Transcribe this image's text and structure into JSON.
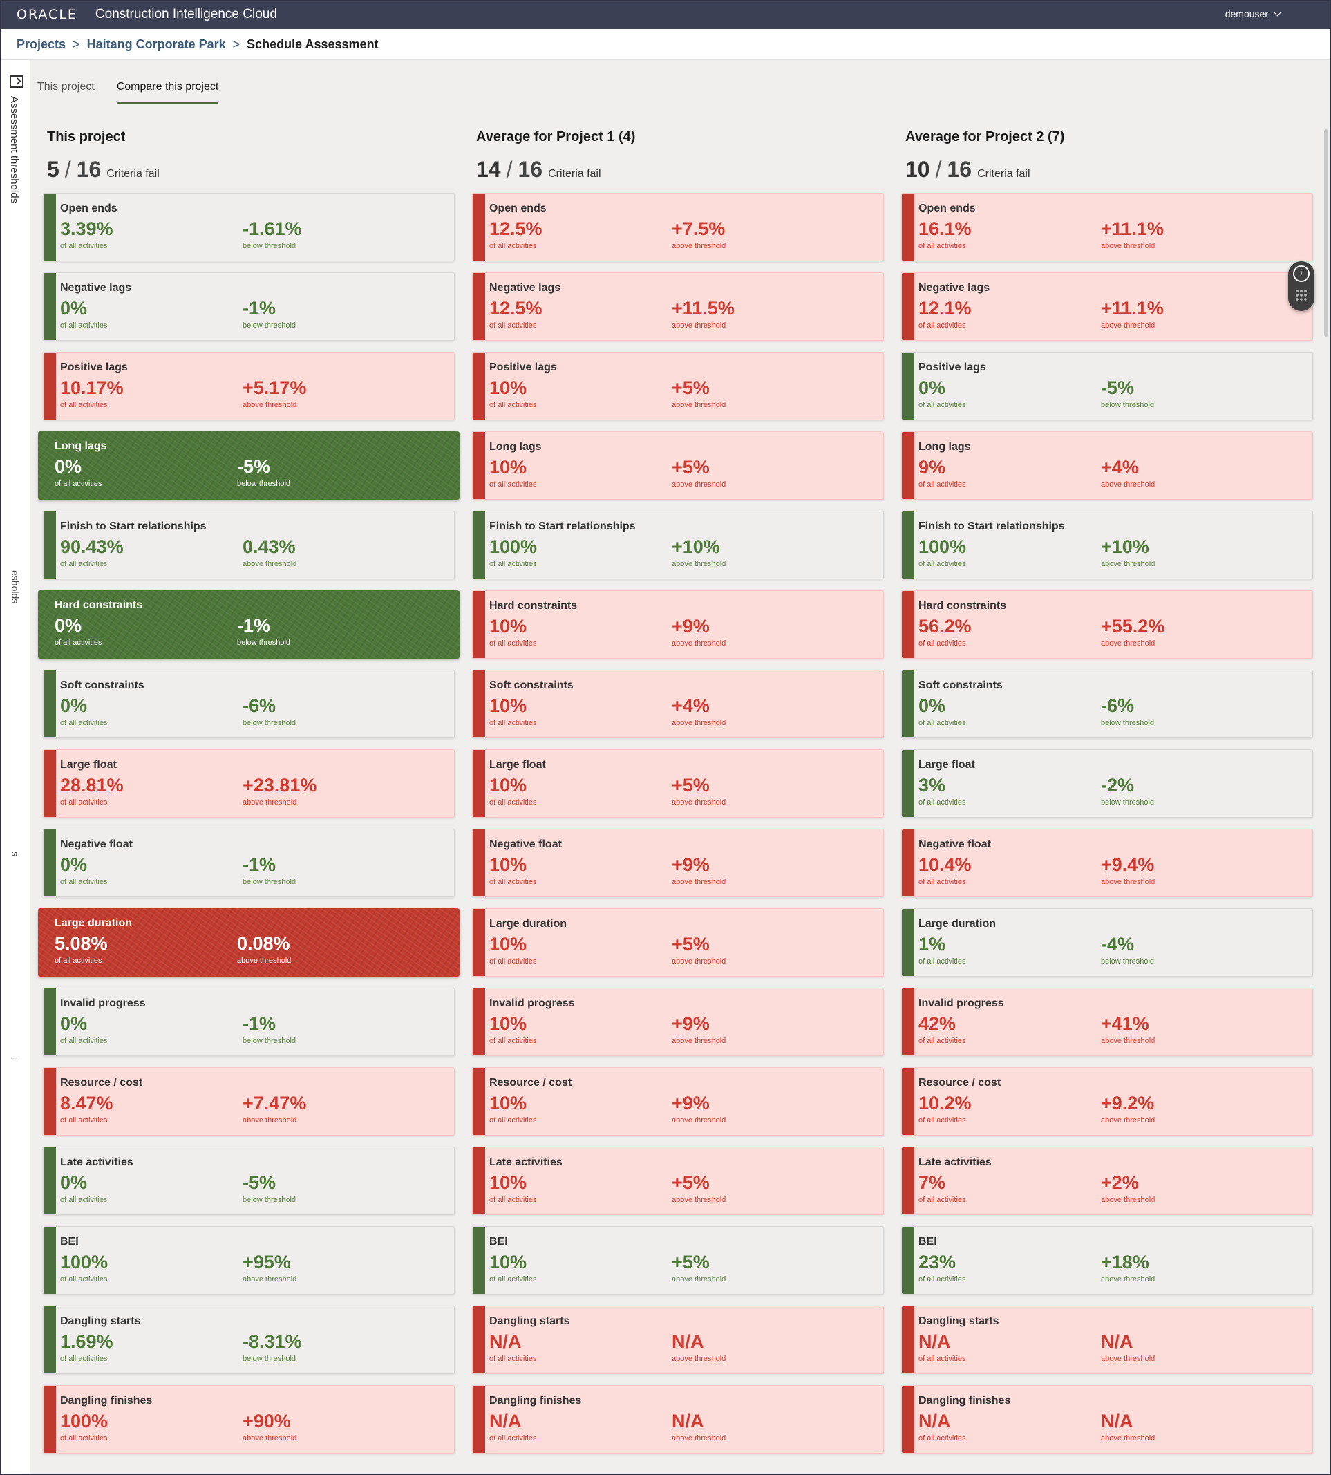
{
  "header": {
    "logo": "ORACLE",
    "app_title": "Construction Intelligence Cloud",
    "user": "demouser"
  },
  "breadcrumb": {
    "items": [
      "Projects",
      "Haitang Corporate Park",
      "Schedule Assessment"
    ],
    "separator": ">"
  },
  "rail": {
    "label": "Assessment thresholds",
    "frag1": "esholds",
    "frag2": "s",
    "frag3": "i"
  },
  "tabs": [
    "This project",
    "Compare this project"
  ],
  "columns": [
    {
      "title": "This project",
      "fail_count": "5",
      "total": "16",
      "label": "Criteria fail",
      "cards": [
        {
          "name": "Open ends",
          "value": "3.39%",
          "sub": "of all activities",
          "delta": "-1.61%",
          "delta_label": "below threshold",
          "status": "pass"
        },
        {
          "name": "Negative lags",
          "value": "0%",
          "sub": "of all activities",
          "delta": "-1%",
          "delta_label": "below threshold",
          "status": "pass"
        },
        {
          "name": "Positive lags",
          "value": "10.17%",
          "sub": "of all activities",
          "delta": "+5.17%",
          "delta_label": "above threshold",
          "status": "fail"
        },
        {
          "name": "Long lags",
          "value": "0%",
          "sub": "of all activities",
          "delta": "-5%",
          "delta_label": "below threshold",
          "status": "pass-selected"
        },
        {
          "name": "Finish to Start relationships",
          "value": "90.43%",
          "sub": "of all activities",
          "delta": "0.43%",
          "delta_label": "above threshold",
          "status": "pass"
        },
        {
          "name": "Hard constraints",
          "value": "0%",
          "sub": "of all activities",
          "delta": "-1%",
          "delta_label": "below threshold",
          "status": "pass-selected"
        },
        {
          "name": "Soft constraints",
          "value": "0%",
          "sub": "of all activities",
          "delta": "-6%",
          "delta_label": "below threshold",
          "status": "pass"
        },
        {
          "name": "Large float",
          "value": "28.81%",
          "sub": "of all activities",
          "delta": "+23.81%",
          "delta_label": "above threshold",
          "status": "fail"
        },
        {
          "name": "Negative float",
          "value": "0%",
          "sub": "of all activities",
          "delta": "-1%",
          "delta_label": "below threshold",
          "status": "pass"
        },
        {
          "name": "Large duration",
          "value": "5.08%",
          "sub": "of all activities",
          "delta": "0.08%",
          "delta_label": "above threshold",
          "status": "fail-selected"
        },
        {
          "name": "Invalid progress",
          "value": "0%",
          "sub": "of all activities",
          "delta": "-1%",
          "delta_label": "below threshold",
          "status": "pass"
        },
        {
          "name": "Resource / cost",
          "value": "8.47%",
          "sub": "of all activities",
          "delta": "+7.47%",
          "delta_label": "above threshold",
          "status": "fail"
        },
        {
          "name": "Late activities",
          "value": "0%",
          "sub": "of all activities",
          "delta": "-5%",
          "delta_label": "below threshold",
          "status": "pass"
        },
        {
          "name": "BEI",
          "value": "100%",
          "sub": "of all activities",
          "delta": "+95%",
          "delta_label": "above threshold",
          "status": "pass"
        },
        {
          "name": "Dangling starts",
          "value": "1.69%",
          "sub": "of all activities",
          "delta": "-8.31%",
          "delta_label": "below threshold",
          "status": "pass"
        },
        {
          "name": "Dangling finishes",
          "value": "100%",
          "sub": "of all activities",
          "delta": "+90%",
          "delta_label": "above threshold",
          "status": "fail"
        }
      ]
    },
    {
      "title": "Average for Project 1 (4)",
      "fail_count": "14",
      "total": "16",
      "label": "Criteria fail",
      "cards": [
        {
          "name": "Open ends",
          "value": "12.5%",
          "sub": "of all activities",
          "delta": "+7.5%",
          "delta_label": "above threshold",
          "status": "fail"
        },
        {
          "name": "Negative lags",
          "value": "12.5%",
          "sub": "of all activities",
          "delta": "+11.5%",
          "delta_label": "above threshold",
          "status": "fail"
        },
        {
          "name": "Positive lags",
          "value": "10%",
          "sub": "of all activities",
          "delta": "+5%",
          "delta_label": "above threshold",
          "status": "fail"
        },
        {
          "name": "Long lags",
          "value": "10%",
          "sub": "of all activities",
          "delta": "+5%",
          "delta_label": "above threshold",
          "status": "fail"
        },
        {
          "name": "Finish to Start relationships",
          "value": "100%",
          "sub": "of all activities",
          "delta": "+10%",
          "delta_label": "above threshold",
          "status": "pass"
        },
        {
          "name": "Hard constraints",
          "value": "10%",
          "sub": "of all activities",
          "delta": "+9%",
          "delta_label": "above threshold",
          "status": "fail"
        },
        {
          "name": "Soft constraints",
          "value": "10%",
          "sub": "of all activities",
          "delta": "+4%",
          "delta_label": "above threshold",
          "status": "fail"
        },
        {
          "name": "Large float",
          "value": "10%",
          "sub": "of all activities",
          "delta": "+5%",
          "delta_label": "above threshold",
          "status": "fail"
        },
        {
          "name": "Negative float",
          "value": "10%",
          "sub": "of all activities",
          "delta": "+9%",
          "delta_label": "above threshold",
          "status": "fail"
        },
        {
          "name": "Large duration",
          "value": "10%",
          "sub": "of all activities",
          "delta": "+5%",
          "delta_label": "above threshold",
          "status": "fail"
        },
        {
          "name": "Invalid progress",
          "value": "10%",
          "sub": "of all activities",
          "delta": "+9%",
          "delta_label": "above threshold",
          "status": "fail"
        },
        {
          "name": "Resource / cost",
          "value": "10%",
          "sub": "of all activities",
          "delta": "+9%",
          "delta_label": "above threshold",
          "status": "fail"
        },
        {
          "name": "Late activities",
          "value": "10%",
          "sub": "of all activities",
          "delta": "+5%",
          "delta_label": "above threshold",
          "status": "fail"
        },
        {
          "name": "BEI",
          "value": "10%",
          "sub": "of all activities",
          "delta": "+5%",
          "delta_label": "above threshold",
          "status": "pass"
        },
        {
          "name": "Dangling starts",
          "value": "N/A",
          "sub": "of all activities",
          "delta": "N/A",
          "delta_label": "above threshold",
          "status": "fail"
        },
        {
          "name": "Dangling finishes",
          "value": "N/A",
          "sub": "of all activities",
          "delta": "N/A",
          "delta_label": "above threshold",
          "status": "fail"
        }
      ]
    },
    {
      "title": "Average for Project 2 (7)",
      "fail_count": "10",
      "total": "16",
      "label": "Criteria fail",
      "cards": [
        {
          "name": "Open ends",
          "value": "16.1%",
          "sub": "of all activities",
          "delta": "+11.1%",
          "delta_label": "above threshold",
          "status": "fail"
        },
        {
          "name": "Negative lags",
          "value": "12.1%",
          "sub": "of all activities",
          "delta": "+11.1%",
          "delta_label": "above threshold",
          "status": "fail"
        },
        {
          "name": "Positive lags",
          "value": "0%",
          "sub": "of all activities",
          "delta": "-5%",
          "delta_label": "below threshold",
          "status": "pass"
        },
        {
          "name": "Long lags",
          "value": "9%",
          "sub": "of all activities",
          "delta": "+4%",
          "delta_label": "above threshold",
          "status": "fail"
        },
        {
          "name": "Finish to Start relationships",
          "value": "100%",
          "sub": "of all activities",
          "delta": "+10%",
          "delta_label": "above threshold",
          "status": "pass"
        },
        {
          "name": "Hard constraints",
          "value": "56.2%",
          "sub": "of all activities",
          "delta": "+55.2%",
          "delta_label": "above threshold",
          "status": "fail"
        },
        {
          "name": "Soft constraints",
          "value": "0%",
          "sub": "of all activities",
          "delta": "-6%",
          "delta_label": "below threshold",
          "status": "pass"
        },
        {
          "name": "Large float",
          "value": "3%",
          "sub": "of all activities",
          "delta": "-2%",
          "delta_label": "below threshold",
          "status": "pass"
        },
        {
          "name": "Negative float",
          "value": "10.4%",
          "sub": "of all activities",
          "delta": "+9.4%",
          "delta_label": "above threshold",
          "status": "fail"
        },
        {
          "name": "Large duration",
          "value": "1%",
          "sub": "of all activities",
          "delta": "-4%",
          "delta_label": "below threshold",
          "status": "pass"
        },
        {
          "name": "Invalid progress",
          "value": "42%",
          "sub": "of all activities",
          "delta": "+41%",
          "delta_label": "above threshold",
          "status": "fail"
        },
        {
          "name": "Resource / cost",
          "value": "10.2%",
          "sub": "of all activities",
          "delta": "+9.2%",
          "delta_label": "above threshold",
          "status": "fail"
        },
        {
          "name": "Late activities",
          "value": "7%",
          "sub": "of all activities",
          "delta": "+2%",
          "delta_label": "above threshold",
          "status": "fail"
        },
        {
          "name": "BEI",
          "value": "23%",
          "sub": "of all activities",
          "delta": "+18%",
          "delta_label": "above threshold",
          "status": "pass"
        },
        {
          "name": "Dangling starts",
          "value": "N/A",
          "sub": "of all activities",
          "delta": "N/A",
          "delta_label": "above threshold",
          "status": "fail"
        },
        {
          "name": "Dangling finishes",
          "value": "N/A",
          "sub": "of all activities",
          "delta": "N/A",
          "delta_label": "above threshold",
          "status": "fail"
        }
      ]
    }
  ],
  "colors": {
    "topbar": "#3b4055",
    "pass": "#4e7a38",
    "fail": "#cf3b30",
    "fail_bg": "#fdddda",
    "pass_bg": "#efeeec"
  }
}
